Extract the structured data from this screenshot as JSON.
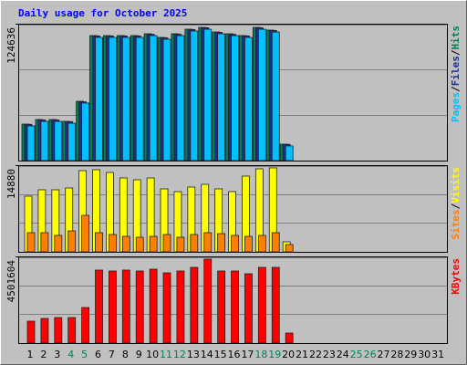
{
  "chart_data": [
    {
      "type": "bar",
      "title": "Daily usage for October 2025",
      "categories": [
        "1",
        "2",
        "3",
        "4",
        "5",
        "6",
        "7",
        "8",
        "9",
        "10",
        "11",
        "12",
        "13",
        "14",
        "15",
        "16",
        "17",
        "18",
        "19",
        "20",
        "21",
        "22",
        "23",
        "24",
        "25",
        "26",
        "27",
        "28",
        "29",
        "30",
        "31"
      ],
      "category_colors": [
        "#000000",
        "#000000",
        "#000000",
        "#00805c",
        "#00805c",
        "#000000",
        "#000000",
        "#000000",
        "#000000",
        "#000000",
        "#00805c",
        "#00805c",
        "#000000",
        "#000000",
        "#000000",
        "#000000",
        "#000000",
        "#00805c",
        "#00805c",
        "#000000",
        "#000000",
        "#000000",
        "#000000",
        "#000000",
        "#00805c",
        "#00805c",
        "#000000",
        "#000000",
        "#000000",
        "#000000",
        "#000000"
      ],
      "ylim": [
        0,
        124636
      ],
      "yticks": [
        124636
      ],
      "series": [
        {
          "name": "Hits",
          "color": "#00805c",
          "values": [
            33236,
            37391,
            37391,
            35729,
            54009,
            113834,
            113834,
            113834,
            113834,
            115496,
            112172,
            115496,
            119651,
            121312,
            117158,
            115496,
            113834,
            121312,
            118820,
            14956,
            null,
            null,
            null,
            null,
            null,
            null,
            null,
            null,
            null,
            null,
            null
          ]
        },
        {
          "name": "Files",
          "color": "#1a2f8f",
          "values": [
            33000,
            37000,
            37000,
            35500,
            53500,
            113500,
            113500,
            113500,
            113500,
            115000,
            111800,
            115000,
            119300,
            121000,
            116800,
            115000,
            113500,
            121000,
            118500,
            14800,
            null,
            null,
            null,
            null,
            null,
            null,
            null,
            null,
            null,
            null,
            null
          ]
        },
        {
          "name": "Pages",
          "color": "#00c0ff",
          "values": [
            31600,
            35700,
            35700,
            34000,
            52400,
            112200,
            112200,
            112200,
            112200,
            113800,
            110500,
            113800,
            118000,
            119600,
            115500,
            113800,
            112200,
            119600,
            117100,
            13300,
            null,
            null,
            null,
            null,
            null,
            null,
            null,
            null,
            null,
            null,
            null
          ]
        }
      ]
    },
    {
      "type": "bar",
      "ylim": [
        0,
        14880
      ],
      "yticks": [
        14880
      ],
      "series": [
        {
          "name": "Visits",
          "color": "#ffff00",
          "values": [
            9554,
            10651,
            10651,
            10964,
            13940,
            14097,
            13627,
            12687,
            12374,
            12687,
            10808,
            10338,
            11121,
            11591,
            10808,
            10338,
            13001,
            14254,
            14410,
            1723,
            null,
            null,
            null,
            null,
            null,
            null,
            null,
            null,
            null,
            null,
            null
          ]
        },
        {
          "name": "Sites",
          "color": "#ff8000",
          "values": [
            3289,
            3289,
            2819,
            3602,
            6265,
            3289,
            2976,
            2662,
            2506,
            2662,
            2976,
            2506,
            2976,
            3289,
            3133,
            2819,
            2662,
            2819,
            3289,
            1253,
            null,
            null,
            null,
            null,
            null,
            null,
            null,
            null,
            null,
            null,
            null
          ]
        }
      ]
    },
    {
      "type": "bar",
      "ylim": [
        0,
        4501604
      ],
      "yticks": [
        4501604
      ],
      "series": [
        {
          "name": "KBytes",
          "color": "#ff0000",
          "values": [
            1137240,
            1279395,
            1326780,
            1326780,
            1848015,
            3790800,
            3743415,
            3790800,
            3743415,
            3838185,
            3648645,
            3743415,
            3932955,
            4359420,
            3743415,
            3743415,
            3601260,
            3932955,
            3932955,
            521235,
            null,
            null,
            null,
            null,
            null,
            null,
            null,
            null,
            null,
            null,
            null
          ]
        }
      ]
    }
  ]
}
